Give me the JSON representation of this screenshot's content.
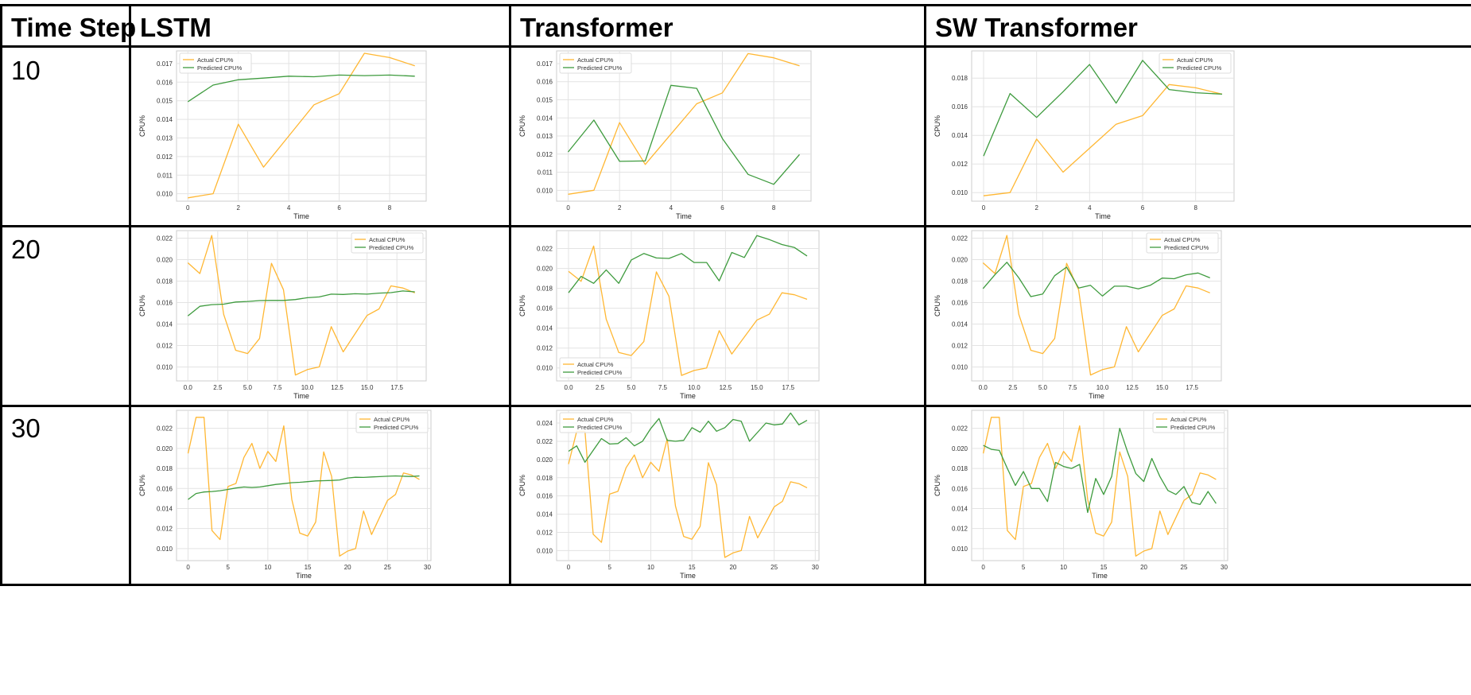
{
  "table": {
    "headers": [
      "Time Step",
      "LSTM",
      "Transformer",
      "SW Transformer"
    ],
    "rows": [
      "10",
      "20",
      "30"
    ]
  },
  "colors": {
    "actual": "#FFB733",
    "predicted": "#3E9B3E",
    "grid": "#E3E3E3",
    "frame": "#CCCCCC"
  },
  "common": {
    "x_label": "Time",
    "y_label": "CPU%",
    "legend_actual": "Actual CPU%",
    "legend_predicted": "Predicted CPU%"
  },
  "chart_data": [
    {
      "id": "lstm-10",
      "type": "line",
      "xlabel": "Time",
      "ylabel": "CPU%",
      "legend": "top-left",
      "grid": true,
      "xlim": [
        -0.45,
        9.45
      ],
      "ylim": [
        0.0096,
        0.01768
      ],
      "xticks": [
        0,
        2,
        4,
        6,
        8
      ],
      "yticks": [
        0.01,
        0.011,
        0.012,
        0.013,
        0.014,
        0.015,
        0.016,
        0.017
      ],
      "x": [
        0,
        1,
        2,
        3,
        4,
        5,
        6,
        7,
        8,
        9
      ],
      "series": [
        {
          "name": "Actual CPU%",
          "values": [
            0.00978,
            0.01,
            0.01374,
            0.01143,
            0.0131,
            0.01478,
            0.01538,
            0.01755,
            0.01732,
            0.01688
          ]
        },
        {
          "name": "Predicted CPU%",
          "values": [
            0.01495,
            0.01584,
            0.01613,
            0.01622,
            0.01632,
            0.01629,
            0.01638,
            0.01635,
            0.01638,
            0.01632
          ]
        }
      ]
    },
    {
      "id": "transformer-10",
      "type": "line",
      "xlabel": "Time",
      "ylabel": "CPU%",
      "legend": "top-left",
      "grid": true,
      "xlim": [
        -0.45,
        9.45
      ],
      "ylim": [
        0.0094,
        0.0177
      ],
      "xticks": [
        0,
        2,
        4,
        6,
        8
      ],
      "yticks": [
        0.01,
        0.011,
        0.012,
        0.013,
        0.014,
        0.015,
        0.016,
        0.017
      ],
      "x": [
        0,
        1,
        2,
        3,
        4,
        5,
        6,
        7,
        8,
        9
      ],
      "series": [
        {
          "name": "Actual CPU%",
          "values": [
            0.00978,
            0.01,
            0.01374,
            0.01143,
            0.0131,
            0.01478,
            0.01538,
            0.01755,
            0.01732,
            0.01688
          ]
        },
        {
          "name": "Predicted CPU%",
          "values": [
            0.01212,
            0.01388,
            0.0116,
            0.01162,
            0.0158,
            0.01563,
            0.01286,
            0.01088,
            0.01033,
            0.01198
          ]
        }
      ]
    },
    {
      "id": "sw-transformer-10",
      "type": "line",
      "xlabel": "Time",
      "ylabel": "CPU%",
      "legend": "top-right",
      "grid": true,
      "xlim": [
        -0.45,
        9.45
      ],
      "ylim": [
        0.0094,
        0.0199
      ],
      "xticks": [
        0,
        2,
        4,
        6,
        8
      ],
      "yticks": [
        0.01,
        0.012,
        0.014,
        0.016,
        0.018
      ],
      "x": [
        0,
        1,
        2,
        3,
        4,
        5,
        6,
        7,
        8,
        9
      ],
      "series": [
        {
          "name": "Actual CPU%",
          "values": [
            0.00978,
            0.01,
            0.01374,
            0.01143,
            0.0131,
            0.01478,
            0.01538,
            0.01755,
            0.01732,
            0.01688
          ]
        },
        {
          "name": "Predicted CPU%",
          "values": [
            0.01255,
            0.01692,
            0.01525,
            0.01705,
            0.01895,
            0.01625,
            0.01924,
            0.0172,
            0.01698,
            0.01688
          ]
        }
      ]
    },
    {
      "id": "lstm-20",
      "type": "line",
      "xlabel": "Time",
      "ylabel": "CPU%",
      "legend": "top-right",
      "grid": true,
      "xlim": [
        -0.95,
        19.95
      ],
      "ylim": [
        0.0087,
        0.0227
      ],
      "xticks": [
        0.0,
        2.5,
        5.0,
        7.5,
        10.0,
        12.5,
        15.0,
        17.5
      ],
      "yticks": [
        0.01,
        0.012,
        0.014,
        0.016,
        0.018,
        0.02,
        0.022
      ],
      "x": [
        0,
        1,
        2,
        3,
        4,
        5,
        6,
        7,
        8,
        9,
        10,
        11,
        12,
        13,
        14,
        15,
        16,
        17,
        18,
        19
      ],
      "series": [
        {
          "name": "Actual CPU%",
          "values": [
            0.0197,
            0.0187,
            0.02225,
            0.0149,
            0.01155,
            0.01125,
            0.01265,
            0.01965,
            0.0172,
            0.00925,
            0.00975,
            0.01,
            0.01375,
            0.0114,
            0.0131,
            0.0148,
            0.0154,
            0.01755,
            0.01735,
            0.0169
          ]
        },
        {
          "name": "Predicted CPU%",
          "values": [
            0.01475,
            0.01565,
            0.0158,
            0.01585,
            0.01605,
            0.0161,
            0.01618,
            0.0162,
            0.0162,
            0.01628,
            0.01645,
            0.01652,
            0.01678,
            0.01675,
            0.01682,
            0.01678,
            0.01688,
            0.01692,
            0.01708,
            0.017
          ]
        }
      ]
    },
    {
      "id": "transformer-20",
      "type": "line",
      "xlabel": "Time",
      "ylabel": "CPU%",
      "legend": "bottom-left",
      "grid": true,
      "xlim": [
        -0.95,
        19.95
      ],
      "ylim": [
        0.0087,
        0.0238
      ],
      "xticks": [
        0.0,
        2.5,
        5.0,
        7.5,
        10.0,
        12.5,
        15.0,
        17.5
      ],
      "yticks": [
        0.01,
        0.012,
        0.014,
        0.016,
        0.018,
        0.02,
        0.022
      ],
      "x": [
        0,
        1,
        2,
        3,
        4,
        5,
        6,
        7,
        8,
        9,
        10,
        11,
        12,
        13,
        14,
        15,
        16,
        17,
        18,
        19
      ],
      "series": [
        {
          "name": "Actual CPU%",
          "values": [
            0.0197,
            0.0187,
            0.02225,
            0.0149,
            0.01155,
            0.01125,
            0.01265,
            0.01965,
            0.0172,
            0.00925,
            0.00975,
            0.01,
            0.01375,
            0.0114,
            0.0131,
            0.0148,
            0.0154,
            0.01755,
            0.01735,
            0.0169
          ]
        },
        {
          "name": "Predicted CPU%",
          "values": [
            0.01755,
            0.0192,
            0.0185,
            0.01985,
            0.0185,
            0.02085,
            0.0215,
            0.02105,
            0.021,
            0.0215,
            0.0206,
            0.0206,
            0.01875,
            0.0216,
            0.0211,
            0.0233,
            0.0229,
            0.0224,
            0.0221,
            0.02125
          ]
        }
      ]
    },
    {
      "id": "sw-transformer-20",
      "type": "line",
      "xlabel": "Time",
      "ylabel": "CPU%",
      "legend": "top-right",
      "grid": true,
      "xlim": [
        -0.95,
        19.95
      ],
      "ylim": [
        0.0087,
        0.0227
      ],
      "xticks": [
        0.0,
        2.5,
        5.0,
        7.5,
        10.0,
        12.5,
        15.0,
        17.5
      ],
      "yticks": [
        0.01,
        0.012,
        0.014,
        0.016,
        0.018,
        0.02,
        0.022
      ],
      "x": [
        0,
        1,
        2,
        3,
        4,
        5,
        6,
        7,
        8,
        9,
        10,
        11,
        12,
        13,
        14,
        15,
        16,
        17,
        18,
        19
      ],
      "series": [
        {
          "name": "Actual CPU%",
          "values": [
            0.0197,
            0.0187,
            0.02225,
            0.0149,
            0.01155,
            0.01125,
            0.01265,
            0.01965,
            0.0172,
            0.00925,
            0.00975,
            0.01,
            0.01375,
            0.0114,
            0.0131,
            0.0148,
            0.0154,
            0.01755,
            0.01735,
            0.0169
          ]
        },
        {
          "name": "Predicted CPU%",
          "values": [
            0.0173,
            0.0186,
            0.01975,
            0.0183,
            0.01655,
            0.0168,
            0.0185,
            0.0193,
            0.01735,
            0.0176,
            0.0166,
            0.01752,
            0.01752,
            0.01728,
            0.0176,
            0.01828,
            0.01822,
            0.01858,
            0.01875,
            0.0183
          ]
        }
      ]
    },
    {
      "id": "lstm-30",
      "type": "line",
      "xlabel": "Time",
      "ylabel": "CPU%",
      "legend": "top-right",
      "grid": true,
      "xlim": [
        -1.45,
        30.45
      ],
      "ylim": [
        0.0088,
        0.0238
      ],
      "xticks": [
        0,
        5,
        10,
        15,
        20,
        25,
        30
      ],
      "yticks": [
        0.01,
        0.012,
        0.014,
        0.016,
        0.018,
        0.02,
        0.022
      ],
      "x": [
        0,
        1,
        2,
        3,
        4,
        5,
        6,
        7,
        8,
        9,
        10,
        11,
        12,
        13,
        14,
        15,
        16,
        17,
        18,
        19,
        20,
        21,
        22,
        23,
        24,
        25,
        26,
        27,
        28,
        29
      ],
      "series": [
        {
          "name": "Actual CPU%",
          "values": [
            0.0195,
            0.0231,
            0.0231,
            0.0118,
            0.0109,
            0.0162,
            0.0165,
            0.0191,
            0.0205,
            0.018,
            0.0197,
            0.0187,
            0.02225,
            0.0149,
            0.01155,
            0.01125,
            0.01265,
            0.01965,
            0.0172,
            0.00925,
            0.00975,
            0.01,
            0.01375,
            0.0114,
            0.0131,
            0.0148,
            0.0154,
            0.01755,
            0.01735,
            0.0169
          ]
        },
        {
          "name": "Predicted CPU%",
          "values": [
            0.0149,
            0.0155,
            0.01565,
            0.0157,
            0.01578,
            0.0159,
            0.01605,
            0.01615,
            0.0161,
            0.01615,
            0.01628,
            0.0164,
            0.01648,
            0.01658,
            0.01662,
            0.01668,
            0.01675,
            0.01678,
            0.0168,
            0.01685,
            0.01705,
            0.01712,
            0.0171,
            0.01715,
            0.01718,
            0.01722,
            0.01725,
            0.01722,
            0.0172,
            0.01725
          ]
        }
      ]
    },
    {
      "id": "transformer-30",
      "type": "line",
      "xlabel": "Time",
      "ylabel": "CPU%",
      "legend": "top-left",
      "grid": true,
      "xlim": [
        -1.45,
        30.45
      ],
      "ylim": [
        0.0089,
        0.0254
      ],
      "xticks": [
        0,
        5,
        10,
        15,
        20,
        25,
        30
      ],
      "yticks": [
        0.01,
        0.012,
        0.014,
        0.016,
        0.018,
        0.02,
        0.022,
        0.024
      ],
      "x": [
        0,
        1,
        2,
        3,
        4,
        5,
        6,
        7,
        8,
        9,
        10,
        11,
        12,
        13,
        14,
        15,
        16,
        17,
        18,
        19,
        20,
        21,
        22,
        23,
        24,
        25,
        26,
        27,
        28,
        29
      ],
      "series": [
        {
          "name": "Actual CPU%",
          "values": [
            0.0195,
            0.0231,
            0.0231,
            0.0118,
            0.0109,
            0.0162,
            0.0165,
            0.0191,
            0.0205,
            0.018,
            0.0197,
            0.0187,
            0.02225,
            0.0149,
            0.01155,
            0.01125,
            0.01265,
            0.01965,
            0.0172,
            0.00925,
            0.00975,
            0.01,
            0.01375,
            0.0114,
            0.0131,
            0.0148,
            0.0154,
            0.01755,
            0.01735,
            0.0169
          ]
        },
        {
          "name": "Predicted CPU%",
          "values": [
            0.0209,
            0.0215,
            0.0197,
            0.021,
            0.0223,
            0.0217,
            0.02175,
            0.0224,
            0.0215,
            0.022,
            0.0234,
            0.0245,
            0.0221,
            0.022,
            0.0221,
            0.0235,
            0.023,
            0.0242,
            0.0231,
            0.0235,
            0.0244,
            0.0242,
            0.022,
            0.023,
            0.024,
            0.0238,
            0.0239,
            0.0251,
            0.0238,
            0.0243
          ]
        }
      ]
    },
    {
      "id": "sw-transformer-30",
      "type": "line",
      "xlabel": "Time",
      "ylabel": "CPU%",
      "legend": "top-right",
      "grid": true,
      "xlim": [
        -1.45,
        30.45
      ],
      "ylim": [
        0.0088,
        0.0238
      ],
      "xticks": [
        0,
        5,
        10,
        15,
        20,
        25,
        30
      ],
      "yticks": [
        0.01,
        0.012,
        0.014,
        0.016,
        0.018,
        0.02,
        0.022
      ],
      "x": [
        0,
        1,
        2,
        3,
        4,
        5,
        6,
        7,
        8,
        9,
        10,
        11,
        12,
        13,
        14,
        15,
        16,
        17,
        18,
        19,
        20,
        21,
        22,
        23,
        24,
        25,
        26,
        27,
        28,
        29
      ],
      "series": [
        {
          "name": "Actual CPU%",
          "values": [
            0.0195,
            0.0231,
            0.0231,
            0.0118,
            0.0109,
            0.0162,
            0.0165,
            0.0191,
            0.0205,
            0.018,
            0.0197,
            0.0187,
            0.02225,
            0.0149,
            0.01155,
            0.01125,
            0.01265,
            0.01965,
            0.0172,
            0.00925,
            0.00975,
            0.01,
            0.01375,
            0.0114,
            0.0131,
            0.0148,
            0.0154,
            0.01755,
            0.01735,
            0.0169
          ]
        },
        {
          "name": "Predicted CPU%",
          "values": [
            0.0203,
            0.0199,
            0.0198,
            0.018,
            0.0163,
            0.0177,
            0.016,
            0.016,
            0.0147,
            0.0186,
            0.0182,
            0.018,
            0.0184,
            0.0136,
            0.017,
            0.0154,
            0.0172,
            0.022,
            0.0196,
            0.0175,
            0.0167,
            0.019,
            0.0172,
            0.0158,
            0.0154,
            0.0162,
            0.0146,
            0.0144,
            0.0157,
            0.0145
          ]
        }
      ]
    }
  ]
}
